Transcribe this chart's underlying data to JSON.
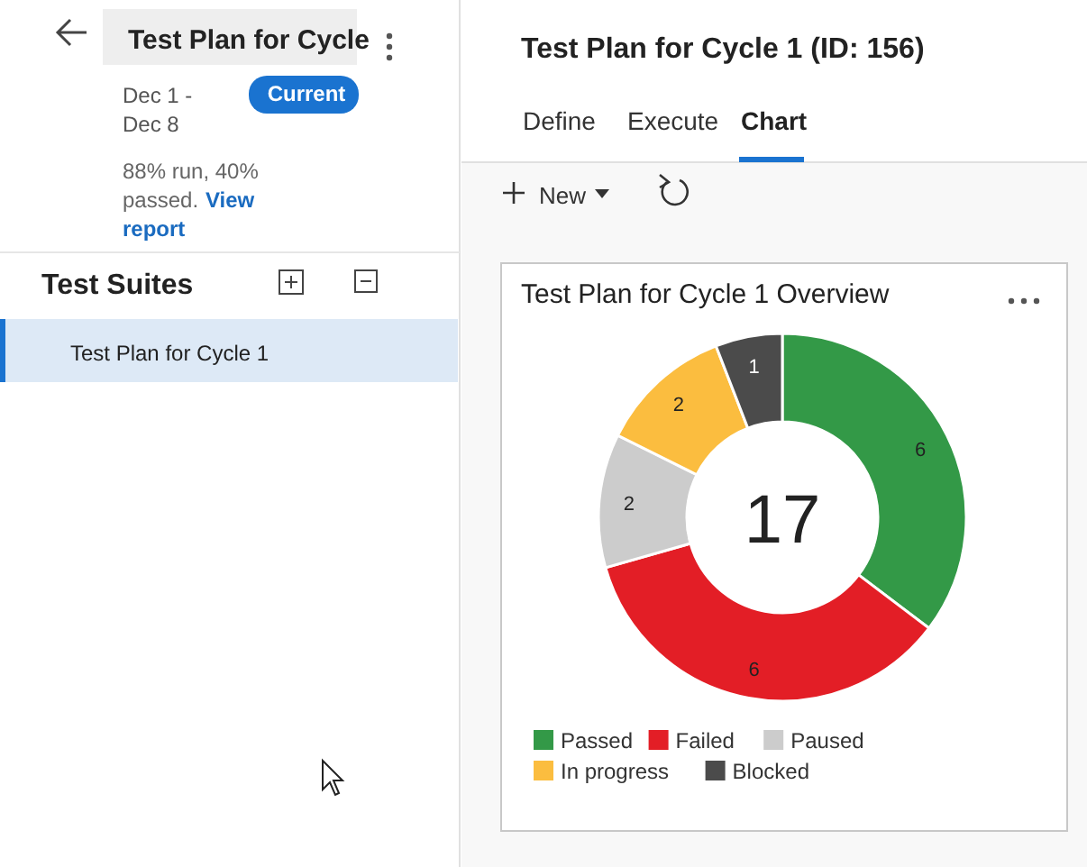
{
  "chart_data": [
    {
      "type": "donut",
      "title": "Test Plan for Cycle 1 Overview",
      "categories": [
        "Passed",
        "Failed",
        "Paused",
        "In progress",
        "Blocked"
      ],
      "values": [
        6,
        6,
        2,
        2,
        1
      ],
      "colors": [
        "#339947",
        "#e31e26",
        "#cccccc",
        "#fbbd3f",
        "#4b4b4b"
      ],
      "data_labels": true,
      "legend": "bottom",
      "annotations": [
        "17"
      ]
    },
    {
      "type": "other",
      "annotations": [
        "Test Plan for Cycle",
        "Dec 1 -",
        "Dec 8",
        "Current",
        "88% run, 40%",
        "passed.",
        "View",
        "report",
        "Test Suites",
        "Test Plan for Cycle 1",
        "Test Plan for Cycle 1 (ID: 156)",
        "Define",
        "Execute",
        "Chart",
        "New"
      ]
    }
  ]
}
